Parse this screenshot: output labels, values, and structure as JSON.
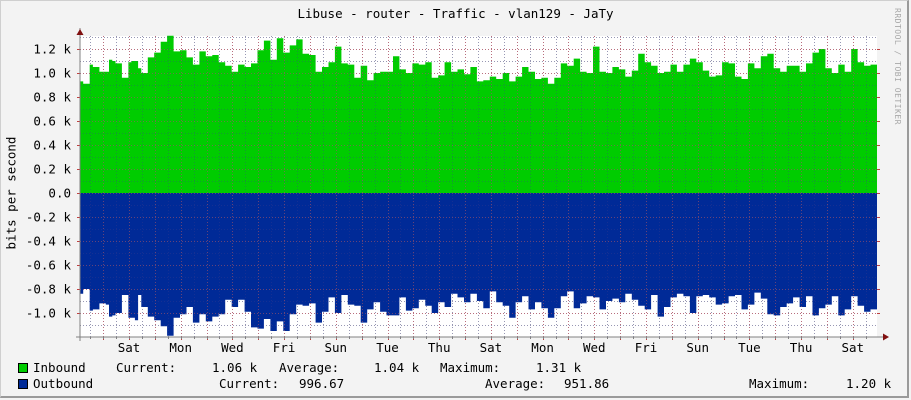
{
  "title": "Libuse - router - Traffic - vlan129 - JaTy",
  "watermark": "RRDTOOL / TOBI OETIKER",
  "colors": {
    "background": "#f3f3f3",
    "plot_bg": "#ffffff",
    "inbound": "#00cc00",
    "outbound": "#002a97",
    "grid_minor": "#c8c8c8",
    "grid_major": "#e6a0a0",
    "axis": "#808080",
    "arrow": "#801010"
  },
  "chart_data": {
    "type": "area",
    "title": "Libuse - router - Traffic - vlan129 - JaTy",
    "ylabel": "bits per second",
    "xlabel": "",
    "ylim": [
      -1.2,
      1.33
    ],
    "yunit": "k",
    "grid": true,
    "legend_position": "bottom",
    "y_ticks": [
      "1.2 k",
      "1.0 k",
      "0.8 k",
      "0.6 k",
      "0.4 k",
      "0.2 k",
      "0.0",
      "-0.2 k",
      "-0.4 k",
      "-0.6 k",
      "-0.8 k",
      "-1.0 k"
    ],
    "y_tick_values": [
      1.2,
      1.0,
      0.8,
      0.6,
      0.4,
      0.2,
      0.0,
      -0.2,
      -0.4,
      -0.6,
      -0.8,
      -1.0
    ],
    "x_ticks": [
      "Sat",
      "Mon",
      "Wed",
      "Fri",
      "Sun",
      "Tue",
      "Thu",
      "Sat",
      "Mon",
      "Wed",
      "Fri",
      "Sun",
      "Tue",
      "Thu",
      "Sat"
    ],
    "series": [
      {
        "name": "Inbound",
        "note": "plotted positive, values in k bits/s",
        "values": [
          0.93,
          0.91,
          0.91,
          1.07,
          1.05,
          1.05,
          1.01,
          1.01,
          1.01,
          1.11,
          1.1,
          1.08,
          1.08,
          0.96,
          0.96,
          1.09,
          1.1,
          1.1,
          1.04,
          1.0,
          1.0,
          1.13,
          1.13,
          1.17,
          1.17,
          1.26,
          1.26,
          1.31,
          1.31,
          1.18,
          1.18,
          1.19,
          1.19,
          1.13,
          1.13,
          1.07,
          1.07,
          1.18,
          1.18,
          1.14,
          1.14,
          1.15,
          1.15,
          1.09,
          1.09,
          1.06,
          1.06,
          1.01,
          1.01,
          1.07,
          1.07,
          1.05,
          1.05,
          1.08,
          1.08,
          1.19,
          1.19,
          1.27,
          1.27,
          1.11,
          1.11,
          1.29,
          1.29,
          1.17,
          1.17,
          1.23,
          1.23,
          1.28,
          1.28,
          1.16,
          1.16,
          1.15,
          1.15,
          1.01,
          1.01,
          1.05,
          1.05,
          1.09,
          1.09,
          1.22,
          1.22,
          1.08,
          1.08,
          1.07,
          1.07,
          0.96,
          0.96,
          1.06,
          1.06,
          0.94,
          0.94,
          1.0,
          1.0,
          1.01,
          1.01,
          1.01,
          1.01,
          1.14,
          1.14,
          1.03,
          1.03,
          1.0,
          1.0,
          1.08,
          1.08,
          1.07,
          1.07,
          1.09,
          1.09,
          0.96,
          0.96,
          0.98,
          0.98,
          1.09,
          1.09,
          1.01,
          1.01,
          1.03,
          1.03,
          0.99,
          0.99,
          1.05,
          1.05,
          0.93,
          0.93,
          0.94,
          0.94,
          0.97,
          0.97,
          0.95,
          0.95,
          1.0,
          1.0,
          0.93,
          0.93,
          0.97,
          0.97,
          1.05,
          1.05,
          1.01,
          1.01,
          0.95,
          0.95,
          0.96,
          0.96,
          0.91,
          0.91,
          0.96,
          0.96,
          1.08,
          1.08,
          1.06,
          1.06,
          1.12,
          1.12,
          1.01,
          1.01,
          1.0,
          1.0,
          1.22,
          1.22,
          1.01,
          1.01,
          1.0,
          1.0,
          1.05,
          1.05,
          1.03,
          1.03,
          0.97,
          0.97,
          1.02,
          1.02,
          1.16,
          1.16,
          1.09,
          1.09,
          1.06,
          1.06,
          1.0,
          1.0,
          1.01,
          1.01,
          1.07,
          1.07,
          1.01,
          1.01,
          1.07,
          1.07,
          1.12,
          1.12,
          1.09,
          1.09,
          1.02,
          1.02,
          0.97,
          0.97,
          0.98,
          0.98,
          1.09,
          1.09,
          1.08,
          1.08,
          0.97,
          0.97,
          0.95,
          0.95,
          1.08,
          1.08,
          1.04,
          1.04,
          1.14,
          1.14,
          1.16,
          1.16,
          1.04,
          1.04,
          1.01,
          1.01,
          1.06,
          1.06,
          1.06,
          1.06,
          1.01,
          1.01,
          1.08,
          1.08,
          1.17,
          1.17,
          1.2,
          1.2,
          1.04,
          1.04,
          1.0,
          1.0,
          1.07,
          1.07,
          1.01,
          1.01,
          1.2,
          1.2,
          1.09,
          1.09,
          1.06,
          1.06,
          1.07,
          1.07
        ]
      },
      {
        "name": "Outbound",
        "note": "plotted negative, values in k bits/s",
        "values": [
          0.84,
          0.8,
          0.8,
          0.98,
          0.97,
          0.97,
          0.92,
          0.92,
          0.93,
          1.03,
          1.02,
          1.0,
          1.0,
          0.85,
          0.85,
          1.04,
          1.04,
          1.06,
          0.85,
          0.95,
          0.95,
          1.03,
          1.03,
          1.06,
          1.06,
          1.11,
          1.11,
          1.19,
          1.19,
          1.04,
          1.04,
          1.01,
          1.01,
          0.95,
          0.95,
          1.08,
          1.08,
          1.01,
          1.01,
          1.07,
          1.07,
          1.03,
          1.03,
          1.01,
          1.01,
          0.89,
          0.89,
          0.95,
          0.95,
          0.89,
          0.89,
          0.99,
          0.99,
          1.12,
          1.12,
          1.13,
          1.13,
          1.05,
          1.05,
          1.15,
          1.15,
          1.07,
          1.07,
          1.15,
          1.15,
          1.01,
          1.01,
          0.93,
          0.93,
          0.94,
          0.94,
          0.92,
          0.92,
          1.08,
          1.08,
          0.99,
          0.99,
          0.87,
          0.87,
          1.0,
          1.0,
          0.85,
          0.85,
          0.93,
          0.93,
          0.94,
          0.94,
          1.08,
          1.08,
          0.97,
          0.97,
          0.91,
          0.91,
          0.99,
          0.99,
          1.02,
          1.02,
          1.02,
          1.02,
          0.87,
          0.87,
          0.98,
          0.98,
          0.96,
          0.96,
          0.89,
          0.89,
          0.94,
          0.94,
          1.0,
          1.0,
          0.91,
          0.91,
          0.95,
          0.95,
          0.84,
          0.84,
          0.87,
          0.87,
          0.91,
          0.91,
          0.84,
          0.84,
          0.9,
          0.9,
          0.96,
          0.96,
          0.82,
          0.82,
          0.91,
          0.91,
          0.94,
          0.94,
          1.04,
          1.04,
          0.91,
          0.91,
          0.86,
          0.86,
          0.97,
          0.97,
          0.91,
          0.91,
          0.96,
          0.96,
          1.04,
          1.04,
          0.96,
          0.96,
          0.86,
          0.86,
          0.82,
          0.82,
          0.96,
          0.96,
          0.92,
          0.92,
          0.86,
          0.86,
          0.87,
          0.87,
          0.97,
          0.97,
          0.9,
          0.9,
          0.88,
          0.88,
          0.91,
          0.91,
          0.84,
          0.84,
          0.89,
          0.89,
          0.94,
          0.94,
          0.97,
          0.97,
          0.85,
          0.85,
          1.03,
          1.03,
          0.95,
          0.95,
          0.87,
          0.87,
          0.84,
          0.84,
          0.86,
          0.86,
          1.0,
          1.0,
          0.86,
          0.86,
          0.85,
          0.85,
          0.87,
          0.87,
          0.93,
          0.93,
          0.92,
          0.92,
          0.86,
          0.86,
          0.85,
          0.85,
          0.97,
          0.97,
          0.93,
          0.93,
          0.83,
          0.83,
          0.88,
          0.88,
          1.01,
          1.01,
          1.02,
          1.02,
          0.95,
          0.95,
          0.92,
          0.92,
          0.87,
          0.87,
          0.95,
          0.95,
          0.86,
          0.86,
          1.02,
          1.02,
          0.96,
          0.96,
          0.93,
          0.93,
          0.86,
          0.86,
          1.02,
          1.02,
          0.97,
          0.97,
          0.86,
          0.86,
          0.94,
          0.94,
          0.99,
          0.99,
          0.97,
          0.97
        ]
      }
    ]
  },
  "legend": {
    "inbound": {
      "label": "Inbound",
      "current_label": "Current:",
      "current_value": "1.06 k",
      "average_label": "Average:",
      "average_value": "1.04 k",
      "maximum_label": "Maximum:",
      "maximum_value": "1.31 k"
    },
    "outbound": {
      "label": "Outbound",
      "current_label": "Current:",
      "current_value": "996.67",
      "average_label": "Average:",
      "average_value": "951.86",
      "maximum_label": "Maximum:",
      "maximum_value": "1.20 k"
    }
  }
}
